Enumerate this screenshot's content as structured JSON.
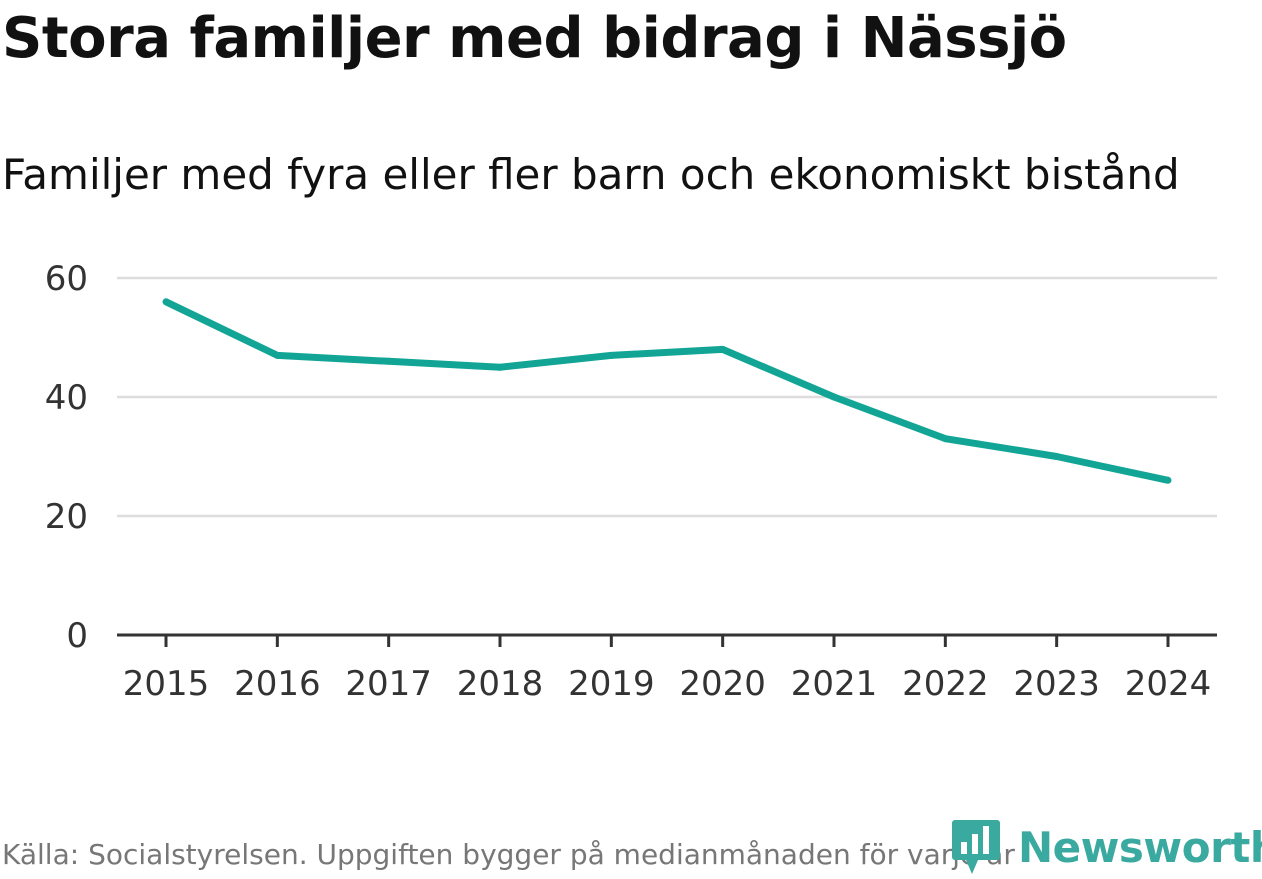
{
  "title": "Stora familjer med bidrag i Nässjö",
  "subtitle": "Familjer med fyra eller fler barn och ekonomiskt bistånd",
  "source": "Källa: Socialstyrelsen. Uppgiften bygger på medianmånaden för varje år",
  "brand": {
    "name": "Newsworthy",
    "icon": "newsworthy-logo-icon",
    "color": "#3aa99f"
  },
  "colors": {
    "line": "#12a596",
    "grid": "#dddddd",
    "axis": "#333333",
    "tick": "#333333"
  },
  "chart_data": {
    "type": "line",
    "title": "Stora familjer med bidrag i Nässjö",
    "subtitle": "Familjer med fyra eller fler barn och ekonomiskt bistånd",
    "xlabel": "",
    "ylabel": "",
    "categories": [
      "2015",
      "2016",
      "2017",
      "2018",
      "2019",
      "2020",
      "2021",
      "2022",
      "2023",
      "2024"
    ],
    "series": [
      {
        "name": "Familjer",
        "values": [
          56,
          47,
          46,
          45,
          47,
          48,
          40,
          33,
          30,
          26
        ]
      }
    ],
    "ylim": [
      0,
      60
    ],
    "yticks": [
      0,
      20,
      40,
      60
    ],
    "grid": true,
    "legend": "none"
  }
}
